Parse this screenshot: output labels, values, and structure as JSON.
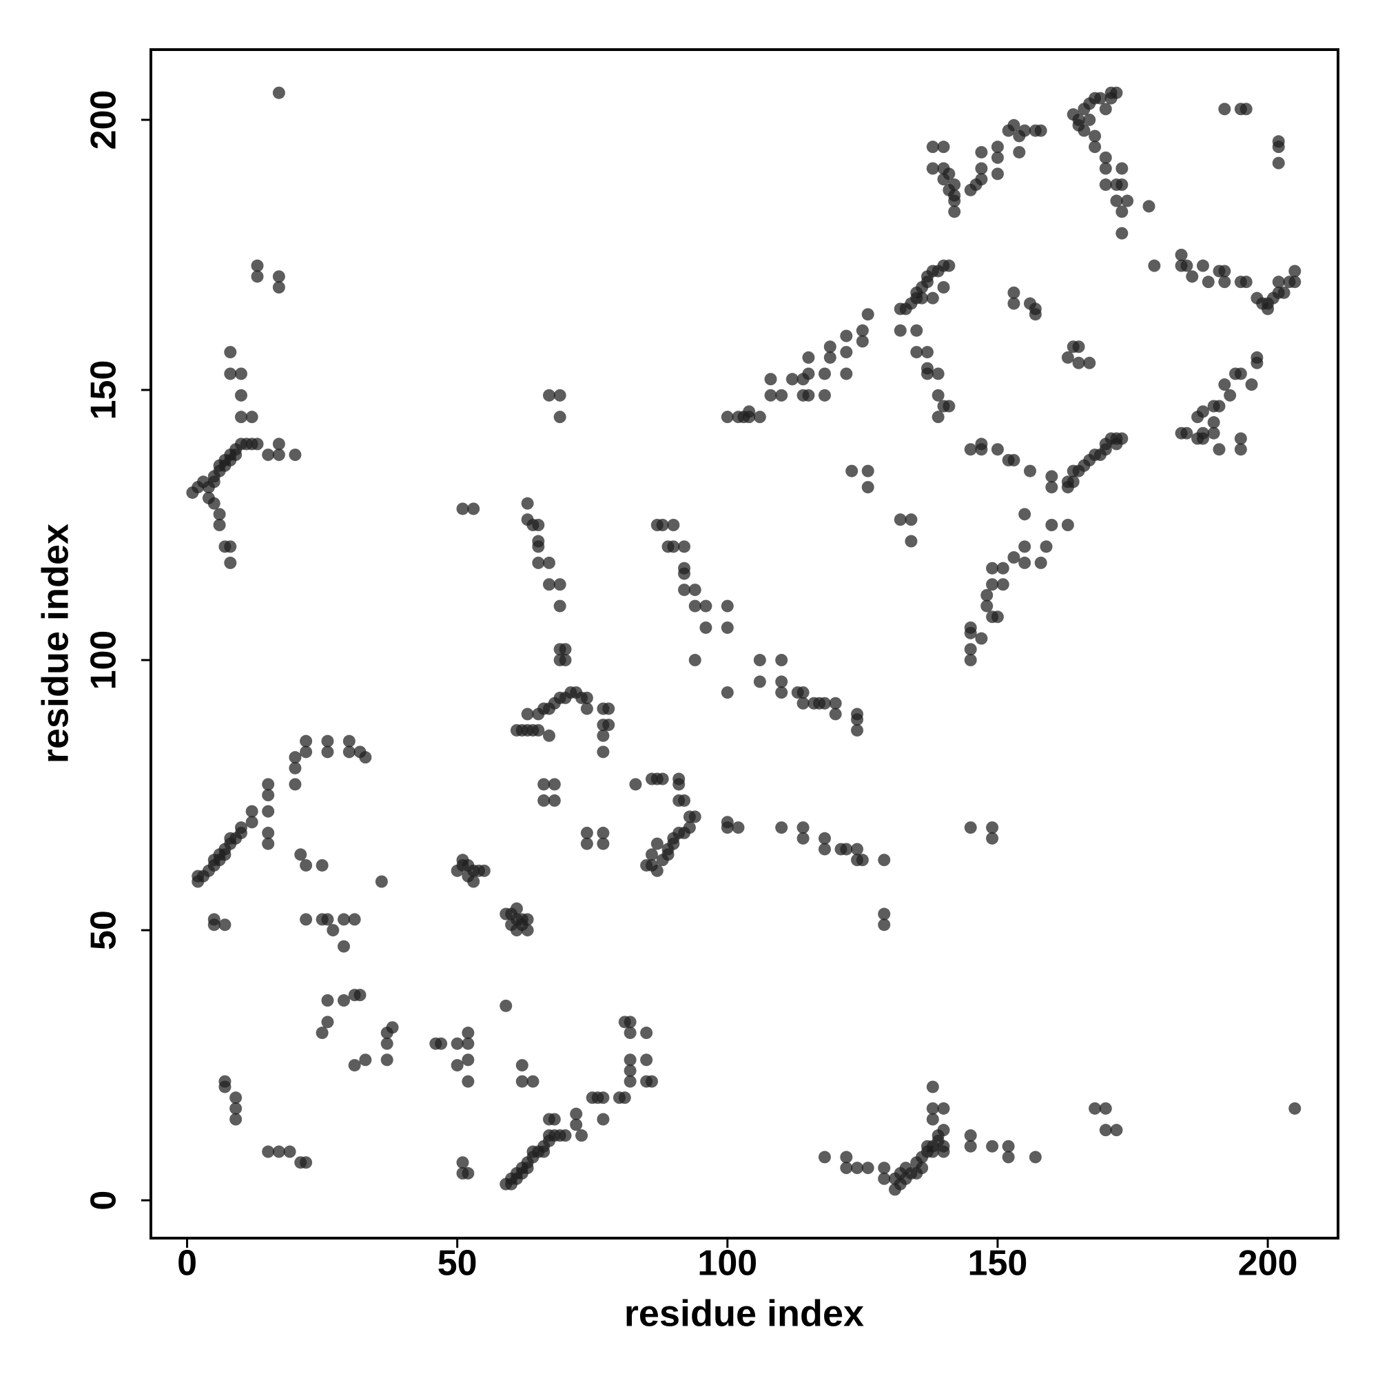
{
  "chart_data": {
    "type": "scatter",
    "xlabel": "residue index",
    "ylabel": "residue index",
    "xlim": [
      -6.7,
      213
    ],
    "ylim": [
      -7,
      213
    ],
    "xticks": [
      0,
      50,
      100,
      150,
      200
    ],
    "yticks": [
      0,
      50,
      100,
      150,
      200
    ],
    "series": [
      {
        "color": "#1e1e1e",
        "alpha": 0.72,
        "x": [
          1,
          2,
          3,
          4,
          5,
          5,
          6,
          6,
          7,
          7,
          8,
          8,
          9,
          9,
          10,
          11,
          12,
          13,
          6,
          6,
          7,
          8,
          8,
          4,
          5,
          8,
          8,
          10,
          10,
          10,
          12,
          15,
          17,
          17,
          20,
          13,
          13,
          17,
          17,
          17,
          2,
          2,
          3,
          4,
          5,
          5,
          6,
          6,
          7,
          7,
          8,
          8,
          9,
          10,
          10,
          12,
          12,
          15,
          15,
          15,
          20,
          20,
          20,
          22,
          22,
          26,
          26,
          30,
          30,
          33,
          32,
          15,
          15,
          21,
          22,
          25,
          5,
          5,
          7,
          22,
          25,
          26,
          27,
          29,
          29,
          31,
          36,
          7,
          7,
          9,
          9,
          9,
          15,
          17,
          19,
          21,
          22,
          26,
          26,
          25,
          29,
          31,
          32,
          31,
          33,
          37,
          37,
          37,
          38,
          46,
          47,
          50,
          50,
          52,
          52,
          52,
          52,
          51,
          52,
          51,
          50,
          51,
          51,
          52,
          52,
          53,
          53,
          54,
          55,
          59,
          60,
          60,
          61,
          61,
          62,
          62,
          63,
          63,
          61,
          59,
          51,
          53,
          59,
          60,
          60,
          61,
          61,
          62,
          62,
          63,
          63,
          64,
          64,
          65,
          66,
          66,
          67,
          67,
          68,
          69,
          70,
          72,
          72,
          73,
          67,
          68,
          62,
          62,
          64,
          75,
          76,
          77,
          77,
          80,
          81,
          81,
          82,
          82,
          82,
          82,
          82,
          85,
          85,
          85,
          86,
          61,
          62,
          63,
          63,
          64,
          65,
          65,
          66,
          67,
          67,
          68,
          69,
          70,
          71,
          72,
          73,
          74,
          74,
          77,
          78,
          77,
          78,
          77,
          77,
          66,
          66,
          68,
          68,
          74,
          74,
          77,
          77,
          63,
          63,
          64,
          65,
          65,
          65,
          65,
          67,
          67,
          69,
          69,
          69,
          70,
          69,
          70,
          67,
          69,
          69,
          83,
          86,
          87,
          88,
          91,
          91,
          91,
          92,
          93,
          94,
          93,
          92,
          91,
          90,
          90,
          89,
          89,
          88,
          86,
          87,
          86,
          87,
          85,
          87,
          88,
          89,
          90,
          90,
          92,
          92,
          92,
          92,
          94,
          94,
          96,
          94,
          96,
          100,
          100,
          100,
          100,
          100,
          102,
          106,
          106,
          110,
          110,
          110,
          113,
          114,
          114,
          116,
          117,
          118,
          120,
          120,
          124,
          124,
          124,
          110,
          114,
          114,
          118,
          118,
          121,
          122,
          124,
          124,
          125,
          129,
          129,
          129,
          100,
          102,
          103,
          104,
          104,
          106,
          108,
          108,
          110,
          112,
          114,
          114,
          115,
          115,
          115,
          118,
          118,
          119,
          119,
          122,
          122,
          122,
          125,
          125,
          126,
          132,
          132,
          133,
          134,
          135,
          135,
          136,
          137,
          137,
          138,
          139,
          140,
          141,
          140,
          138,
          136,
          135,
          135,
          137,
          137,
          137,
          139,
          139,
          140,
          141,
          139,
          123,
          126,
          126,
          132,
          134,
          134,
          138,
          140,
          138,
          140,
          140,
          141,
          141,
          142,
          142,
          142,
          142,
          145,
          146,
          147,
          147,
          147,
          150,
          150,
          150,
          152,
          153,
          154,
          154,
          155,
          157,
          158,
          145,
          147,
          147,
          150,
          152,
          153,
          156,
          160,
          160,
          163,
          163,
          164,
          164,
          165,
          166,
          167,
          168,
          169,
          170,
          170,
          171,
          172,
          173,
          172,
          153,
          153,
          156,
          157,
          157,
          163,
          164,
          165,
          165,
          167,
          164,
          165,
          165,
          166,
          166,
          167,
          167,
          168,
          168,
          168,
          169,
          170,
          170,
          170,
          171,
          171,
          172,
          170,
          172,
          172,
          173,
          173,
          174,
          173,
          173,
          178,
          179,
          184,
          184,
          185,
          186,
          188,
          189,
          191,
          192,
          192,
          192,
          195,
          196,
          196,
          198,
          199,
          200,
          200,
          201,
          202,
          202,
          203,
          204,
          205,
          205,
          202,
          202,
          202,
          198,
          198,
          197,
          195,
          194,
          193,
          192,
          191,
          190,
          190,
          188,
          188,
          187,
          184,
          185,
          187,
          188,
          190,
          191,
          195,
          195,
          195,
          155,
          160,
          163,
          159,
          158,
          155,
          155,
          153,
          151,
          151,
          149,
          149,
          148,
          148,
          149,
          150,
          145,
          145,
          145,
          145,
          147,
          145,
          149,
          149,
          118,
          122,
          122,
          124,
          126,
          129,
          129,
          131,
          131,
          132,
          132,
          133,
          133,
          134,
          135,
          135,
          136,
          136,
          137,
          137,
          138,
          138,
          139,
          139,
          140,
          140,
          140,
          138,
          138,
          140,
          138,
          145,
          145,
          149,
          152,
          152,
          157,
          168,
          170,
          170,
          172,
          205
        ],
        "values": [
          131,
          132,
          133,
          132,
          133,
          134,
          135,
          136,
          136,
          137,
          137,
          138,
          138,
          139,
          140,
          140,
          140,
          140,
          125,
          127,
          121,
          121,
          118,
          130,
          129,
          157,
          153,
          153,
          149,
          145,
          145,
          138,
          138,
          140,
          138,
          173,
          171,
          171,
          169,
          205,
          59,
          60,
          60,
          61,
          62,
          63,
          63,
          64,
          64,
          65,
          66,
          67,
          67,
          68,
          69,
          70,
          72,
          72,
          75,
          77,
          80,
          82,
          77,
          83,
          85,
          83,
          85,
          83,
          85,
          82,
          83,
          66,
          68,
          64,
          62,
          62,
          51,
          52,
          51,
          52,
          52,
          52,
          50,
          47,
          52,
          52,
          59,
          22,
          21,
          19,
          17,
          15,
          9,
          9,
          9,
          7,
          7,
          37,
          33,
          31,
          37,
          38,
          38,
          25,
          26,
          26,
          29,
          31,
          32,
          29,
          29,
          29,
          25,
          31,
          29,
          26,
          22,
          7,
          5,
          5,
          61,
          62,
          63,
          62,
          60,
          61,
          59,
          61,
          61,
          53,
          53,
          51,
          54,
          52,
          52,
          51,
          50,
          52,
          50,
          36,
          128,
          128,
          3,
          3,
          4,
          4,
          5,
          5,
          6,
          6,
          7,
          8,
          9,
          9,
          9,
          10,
          11,
          12,
          12,
          12,
          12,
          14,
          16,
          12,
          15,
          15,
          22,
          25,
          22,
          19,
          19,
          19,
          15,
          19,
          19,
          33,
          33,
          31,
          26,
          22,
          24,
          31,
          26,
          22,
          22,
          87,
          87,
          87,
          90,
          87,
          90,
          87,
          91,
          86,
          91,
          92,
          93,
          93,
          94,
          94,
          93,
          93,
          91,
          91,
          91,
          88,
          88,
          86,
          83,
          77,
          74,
          77,
          74,
          68,
          66,
          68,
          66,
          129,
          126,
          125,
          125,
          122,
          121,
          118,
          118,
          114,
          114,
          110,
          102,
          102,
          100,
          100,
          149,
          149,
          145,
          77,
          78,
          78,
          78,
          78,
          77,
          74,
          74,
          71,
          71,
          69,
          68,
          68,
          67,
          66,
          65,
          64,
          63,
          62,
          61,
          64,
          66,
          62,
          125,
          125,
          121,
          125,
          121,
          121,
          117,
          116,
          113,
          113,
          110,
          110,
          100,
          106,
          110,
          106,
          94,
          70,
          69,
          69,
          100,
          96,
          100,
          96,
          94,
          94,
          94,
          92,
          92,
          92,
          92,
          92,
          90,
          90,
          89,
          87,
          69,
          69,
          67,
          67,
          65,
          65,
          65,
          65,
          63,
          63,
          63,
          53,
          51,
          145,
          145,
          145,
          146,
          145,
          145,
          152,
          149,
          149,
          152,
          152,
          149,
          149,
          153,
          156,
          149,
          153,
          156,
          158,
          157,
          153,
          160,
          159,
          161,
          164,
          161,
          165,
          165,
          166,
          167,
          168,
          169,
          170,
          171,
          172,
          172,
          173,
          173,
          169,
          167,
          167,
          161,
          157,
          157,
          154,
          153,
          153,
          149,
          147,
          147,
          145,
          135,
          135,
          132,
          126,
          126,
          122,
          195,
          195,
          191,
          191,
          189,
          190,
          187,
          188,
          186,
          185,
          183,
          187,
          188,
          189,
          191,
          194,
          195,
          193,
          190,
          198,
          199,
          197,
          194,
          198,
          198,
          198,
          139,
          140,
          139,
          139,
          137,
          137,
          135,
          134,
          132,
          132,
          133,
          133,
          135,
          135,
          136,
          137,
          138,
          138,
          139,
          140,
          141,
          141,
          141,
          140,
          168,
          166,
          166,
          165,
          164,
          156,
          158,
          158,
          155,
          155,
          201,
          200,
          199,
          198,
          202,
          200,
          203,
          204,
          197,
          195,
          204,
          202,
          193,
          191,
          205,
          204,
          205,
          188,
          188,
          185,
          191,
          188,
          185,
          183,
          179,
          184,
          173,
          173,
          175,
          173,
          171,
          173,
          170,
          172,
          170,
          172,
          202,
          202,
          202,
          170,
          167,
          166,
          165,
          166,
          167,
          168,
          170,
          168,
          170,
          172,
          170,
          196,
          195,
          192,
          156,
          155,
          151,
          153,
          153,
          149,
          151,
          147,
          147,
          144,
          142,
          146,
          145,
          142,
          142,
          141,
          141,
          142,
          139,
          139,
          141,
          170,
          127,
          125,
          125,
          121,
          118,
          121,
          118,
          119,
          117,
          114,
          114,
          117,
          112,
          110,
          108,
          108,
          106,
          105,
          102,
          100,
          104,
          69,
          69,
          67,
          8,
          8,
          6,
          6,
          6,
          6,
          4,
          2,
          4,
          3,
          5,
          4,
          6,
          5,
          5,
          7,
          6,
          8,
          9,
          10,
          9,
          10,
          11,
          12,
          10,
          13,
          9,
          15,
          17,
          17,
          21,
          12,
          10,
          10,
          10,
          8,
          8,
          17,
          17,
          13,
          13,
          17
        ]
      }
    ]
  }
}
